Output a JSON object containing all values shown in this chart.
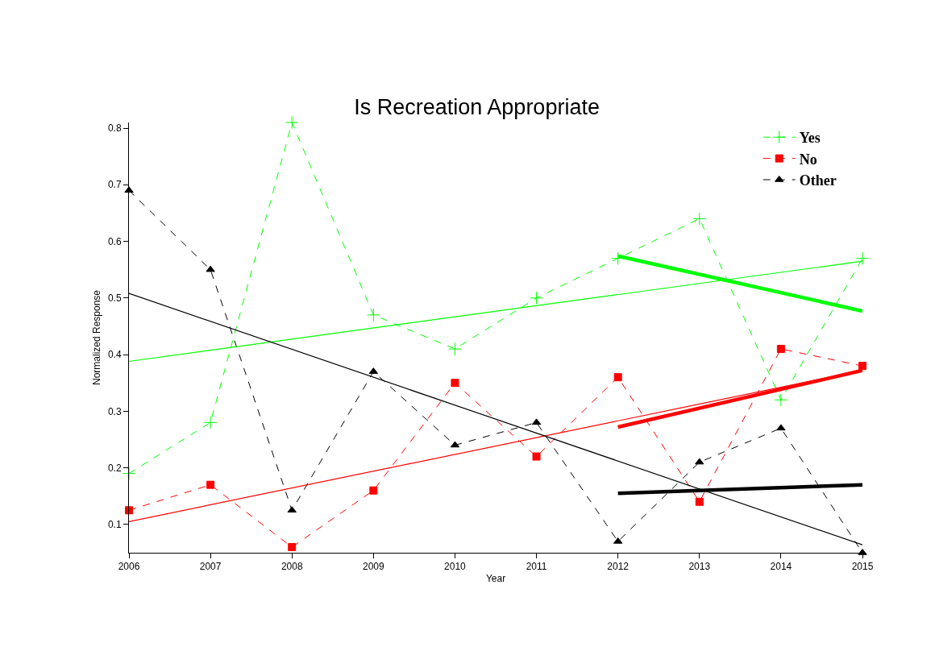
{
  "chart_data": {
    "type": "line",
    "title": "Is Recreation Appropriate",
    "xlabel": "Year",
    "ylabel": "Normalized Response",
    "x": [
      2006,
      2007,
      2008,
      2009,
      2010,
      2011,
      2012,
      2013,
      2014,
      2015
    ],
    "series": [
      {
        "name": "Yes",
        "color": "#00ff00",
        "marker": "cross",
        "line_style": "dashed",
        "values": [
          0.19,
          0.28,
          0.81,
          0.47,
          0.41,
          0.5,
          0.57,
          0.64,
          0.32,
          0.57
        ]
      },
      {
        "name": "No",
        "color": "#ff0000",
        "marker": "square",
        "line_style": "dashed",
        "values": [
          0.125,
          0.17,
          0.06,
          0.16,
          0.35,
          0.22,
          0.36,
          0.14,
          0.41,
          0.38
        ]
      },
      {
        "name": "Other",
        "color": "#000000",
        "marker": "triangle",
        "line_style": "dashed",
        "values": [
          0.69,
          0.55,
          0.125,
          0.37,
          0.24,
          0.28,
          0.07,
          0.21,
          0.27,
          0.05
        ]
      },
      {
        "color": "#00ff00",
        "marker": "none",
        "line_style": "solid",
        "x": [
          2006,
          2015
        ],
        "values": [
          0.388,
          0.565
        ]
      },
      {
        "color": "#ff0000",
        "marker": "none",
        "line_style": "solid",
        "x": [
          2006,
          2015
        ],
        "values": [
          0.105,
          0.372
        ]
      },
      {
        "color": "#000000",
        "marker": "none",
        "line_style": "solid",
        "x": [
          2006,
          2015
        ],
        "values": [
          0.508,
          0.064
        ]
      },
      {
        "color": "#00ff00",
        "marker": "none",
        "line_style": "solid",
        "x": [
          2012,
          2015
        ],
        "values": [
          0.574,
          0.477
        ]
      },
      {
        "color": "#ff0000",
        "marker": "none",
        "line_style": "solid",
        "x": [
          2012,
          2015
        ],
        "values": [
          0.272,
          0.372
        ]
      },
      {
        "color": "#000000",
        "marker": "none",
        "line_style": "solid",
        "x": [
          2012,
          2015
        ],
        "values": [
          0.155,
          0.17
        ]
      }
    ],
    "xlim": [
      2006,
      2015
    ],
    "xticks": [
      2006,
      2007,
      2008,
      2009,
      2010,
      2011,
      2012,
      2013,
      2014,
      2015
    ],
    "ylim": [
      0.05,
      0.81
    ],
    "yticks": [
      0.1,
      0.2,
      0.3,
      0.4,
      0.5,
      0.6,
      0.7,
      0.8
    ],
    "legend": "top right"
  }
}
